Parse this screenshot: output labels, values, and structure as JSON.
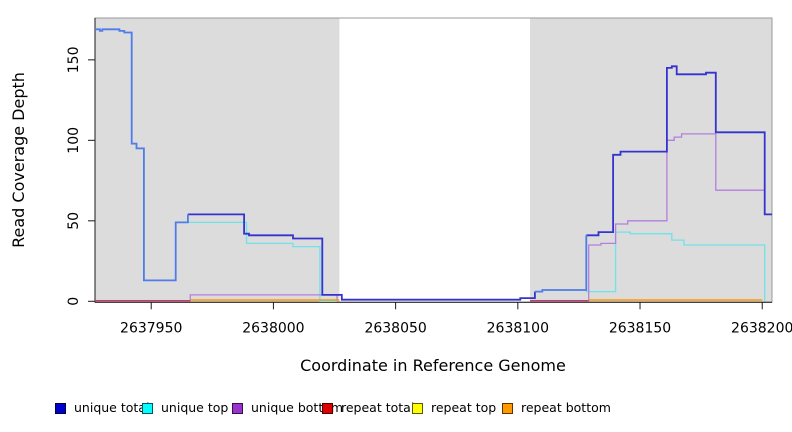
{
  "chart_data": {
    "type": "line",
    "subtype": "step-coverage",
    "xlabel": "Coordinate in Reference Genome",
    "ylabel": "Read Coverage Depth",
    "xlim": [
      2637927,
      2638204
    ],
    "ylim": [
      0,
      176
    ],
    "xticks": [
      2637950,
      2638000,
      2638050,
      2638100,
      2638150,
      2638200
    ],
    "xtick_labels": [
      "2637950",
      "2638000",
      "2638050",
      "2638100",
      "2638150",
      "2638200"
    ],
    "yticks": [
      0,
      50,
      100,
      150
    ],
    "ytick_labels": [
      "0",
      "50",
      "100",
      "150"
    ],
    "grid": false,
    "legend_position": "bottom",
    "background_color": "#ffffff",
    "shaded_region_color": "#dcdcdc",
    "shaded_regions": [
      [
        2637927,
        2638027
      ],
      [
        2638105,
        2638204
      ]
    ],
    "series": [
      {
        "name": "unique total",
        "color": "#3433cf",
        "overlap_color": "#4e7ce8",
        "legend_color": "#0000cc",
        "paths": [
          [
            [
              2637927,
              169
            ],
            [
              2637929,
              168
            ],
            [
              2637930,
              169
            ],
            [
              2637937,
              168
            ],
            [
              2637939,
              167
            ],
            [
              2637942,
              98
            ],
            [
              2637944,
              95
            ],
            [
              2637947,
              13
            ],
            [
              2637960,
              49
            ],
            [
              2637965,
              54
            ],
            [
              2637988,
              42
            ],
            [
              2637990,
              41
            ],
            [
              2638008,
              39
            ],
            [
              2638020,
              4
            ],
            [
              2638028,
              1
            ],
            [
              2638101,
              2
            ],
            [
              2638107,
              6
            ],
            [
              2638110,
              7
            ],
            [
              2638128,
              41
            ],
            [
              2638133,
              43
            ],
            [
              2638139,
              91
            ],
            [
              2638142,
              93
            ],
            [
              2638161,
              145
            ],
            [
              2638163,
              146
            ],
            [
              2638165,
              141
            ],
            [
              2638177,
              142
            ],
            [
              2638181,
              105
            ],
            [
              2638201,
              54
            ],
            [
              2638204,
              54
            ]
          ]
        ]
      },
      {
        "name": "unique top",
        "color": "#6fe2ea",
        "legend_color": "#00ffff",
        "paths": [
          [
            [
              2637927,
              169
            ],
            [
              2637929,
              168
            ],
            [
              2637930,
              169
            ],
            [
              2637937,
              168
            ],
            [
              2637939,
              167
            ],
            [
              2637942,
              98
            ],
            [
              2637944,
              95
            ],
            [
              2637947,
              13
            ],
            [
              2637960,
              49
            ],
            [
              2637989,
              36
            ],
            [
              2638008,
              34
            ],
            [
              2638019,
              0
            ],
            [
              2638026,
              0
            ]
          ],
          [
            [
              2638107,
              6
            ],
            [
              2638110,
              7
            ],
            [
              2638128,
              6
            ],
            [
              2638140,
              43
            ],
            [
              2638146,
              42
            ],
            [
              2638163,
              38
            ],
            [
              2638168,
              35
            ],
            [
              2638201,
              35
            ],
            [
              2638201,
              0
            ]
          ]
        ]
      },
      {
        "name": "unique bottom",
        "color": "#b37fdd",
        "legend_color": "#9933cc",
        "paths": [
          [
            [
              2637966,
              0
            ],
            [
              2637966,
              4
            ],
            [
              2638026,
              4
            ],
            [
              2638026,
              0
            ]
          ],
          [
            [
              2638129,
              0
            ],
            [
              2638129,
              35
            ],
            [
              2638134,
              36
            ],
            [
              2638140,
              48
            ],
            [
              2638145,
              50
            ],
            [
              2638161,
              100
            ],
            [
              2638164,
              102
            ],
            [
              2638167,
              104
            ],
            [
              2638181,
              69
            ],
            [
              2638201,
              69
            ],
            [
              2638201,
              54
            ]
          ]
        ]
      },
      {
        "name": "repeat total",
        "color": "#c43a6e",
        "legend_color": "#dd0000",
        "paths": [
          [
            [
              2637927,
              0.4
            ],
            [
              2637966,
              0.4
            ]
          ],
          [
            [
              2638105,
              0.4
            ],
            [
              2638129,
              0.4
            ]
          ]
        ]
      },
      {
        "name": "repeat top",
        "color": "#ffff00",
        "legend_color": "#ffff00",
        "paths": []
      },
      {
        "name": "repeat bottom",
        "color": "#ff9800",
        "legend_color": "#ff9900",
        "paths": [
          [
            [
              2637966,
              0.8
            ],
            [
              2638027,
              0.8
            ]
          ],
          [
            [
              2638129,
              0.8
            ],
            [
              2638200,
              0.8
            ]
          ]
        ]
      }
    ]
  },
  "legend": {
    "item_lefts": [
      55,
      142,
      232,
      322,
      412,
      502
    ]
  }
}
